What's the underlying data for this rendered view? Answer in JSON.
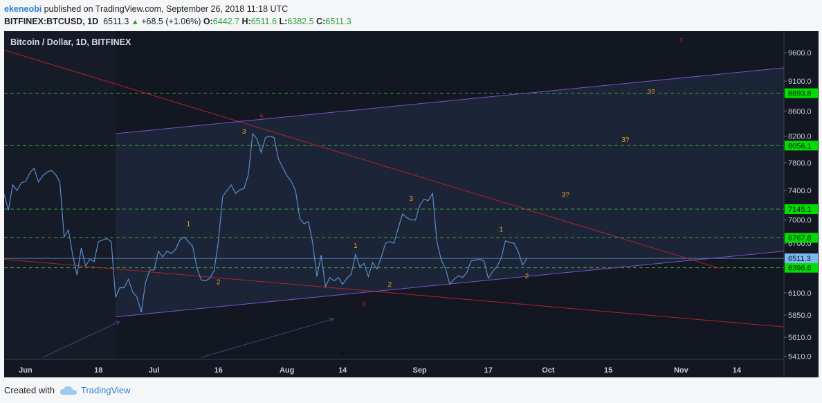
{
  "header": {
    "author": "ekeneobi",
    "published": "published on TradingView.com, September 26, 2018 11:18 UTC",
    "symbol": "BITFINEX:BTCUSD, 1D",
    "last": "6511.3",
    "arrow": "▲",
    "change": "+68.5 (+1.06%)",
    "o_label": "O:",
    "o_value": "6442.7",
    "h_label": "H:",
    "h_value": "6511.6",
    "l_label": "L:",
    "l_value": "6382.5",
    "c_label": "C:",
    "c_value": "6511.3"
  },
  "footer": {
    "created_with": "Created with",
    "brand": "TradingView"
  },
  "colors": {
    "background": "#131722",
    "line": "#5b8ec9",
    "channel": "#7b52c9",
    "trendline": "#b0232a",
    "level_line": "#3ca33c",
    "label": "#f0a020",
    "level_badge": "#00e000",
    "price_badge": "#7fb8f0"
  },
  "chart_data": {
    "type": "line",
    "title": "Bitcoin / Dollar, 1D, BITFINEX",
    "y_scale": "log",
    "ylim": [
      5380,
      10000
    ],
    "xlim": [
      "2018-05-27",
      "2018-11-25"
    ],
    "x_tick_labels": [
      {
        "date": "2018-06-01",
        "label": "Jun"
      },
      {
        "date": "2018-06-18",
        "label": "18"
      },
      {
        "date": "2018-07-01",
        "label": "Jul"
      },
      {
        "date": "2018-07-16",
        "label": "16"
      },
      {
        "date": "2018-08-01",
        "label": "Aug"
      },
      {
        "date": "2018-08-14",
        "label": "14"
      },
      {
        "date": "2018-09-01",
        "label": "Sep"
      },
      {
        "date": "2018-09-17",
        "label": "17"
      },
      {
        "date": "2018-10-01",
        "label": "Oct"
      },
      {
        "date": "2018-10-15",
        "label": "15"
      },
      {
        "date": "2018-11-01",
        "label": "Nov"
      },
      {
        "date": "2018-11-14",
        "label": "14"
      }
    ],
    "y_tick_labels": [
      "9600.0",
      "9100.0",
      "8600.0",
      "8200.0",
      "7800.0",
      "7400.0",
      "7000.0",
      "6700.0",
      "6100.0",
      "5850.0",
      "5610.0",
      "5410.0"
    ],
    "series": [
      {
        "x": [
          "2018-05-27",
          "2018-05-28",
          "2018-05-29",
          "2018-05-30",
          "2018-05-31",
          "2018-06-01",
          "2018-06-02",
          "2018-06-03",
          "2018-06-04",
          "2018-06-05",
          "2018-06-06",
          "2018-06-07",
          "2018-06-08",
          "2018-06-09",
          "2018-06-10",
          "2018-06-11",
          "2018-06-12",
          "2018-06-13",
          "2018-06-14",
          "2018-06-15",
          "2018-06-16",
          "2018-06-17",
          "2018-06-18",
          "2018-06-19",
          "2018-06-20",
          "2018-06-21",
          "2018-06-22",
          "2018-06-23",
          "2018-06-24",
          "2018-06-25",
          "2018-06-26",
          "2018-06-27",
          "2018-06-28",
          "2018-06-29",
          "2018-06-30",
          "2018-07-01",
          "2018-07-02",
          "2018-07-03",
          "2018-07-04",
          "2018-07-05",
          "2018-07-06",
          "2018-07-07",
          "2018-07-08",
          "2018-07-09",
          "2018-07-10",
          "2018-07-11",
          "2018-07-12",
          "2018-07-13",
          "2018-07-14",
          "2018-07-15",
          "2018-07-16",
          "2018-07-17",
          "2018-07-18",
          "2018-07-19",
          "2018-07-20",
          "2018-07-21",
          "2018-07-22",
          "2018-07-23",
          "2018-07-24",
          "2018-07-25",
          "2018-07-26",
          "2018-07-27",
          "2018-07-28",
          "2018-07-29",
          "2018-07-30",
          "2018-07-31",
          "2018-08-01",
          "2018-08-02",
          "2018-08-03",
          "2018-08-04",
          "2018-08-05",
          "2018-08-06",
          "2018-08-07",
          "2018-08-08",
          "2018-08-09",
          "2018-08-10",
          "2018-08-11",
          "2018-08-12",
          "2018-08-13",
          "2018-08-14",
          "2018-08-15",
          "2018-08-16",
          "2018-08-17",
          "2018-08-18",
          "2018-08-19",
          "2018-08-20",
          "2018-08-21",
          "2018-08-22",
          "2018-08-23",
          "2018-08-24",
          "2018-08-25",
          "2018-08-26",
          "2018-08-27",
          "2018-08-28",
          "2018-08-29",
          "2018-08-30",
          "2018-08-31",
          "2018-09-01",
          "2018-09-02",
          "2018-09-03",
          "2018-09-04",
          "2018-09-05",
          "2018-09-06",
          "2018-09-07",
          "2018-09-08",
          "2018-09-09",
          "2018-09-10",
          "2018-09-11",
          "2018-09-12",
          "2018-09-13",
          "2018-09-14",
          "2018-09-15",
          "2018-09-16",
          "2018-09-17",
          "2018-09-18",
          "2018-09-19",
          "2018-09-20",
          "2018-09-21",
          "2018-09-22",
          "2018-09-23",
          "2018-09-24",
          "2018-09-25",
          "2018-09-26"
        ],
        "values": [
          7350,
          7130,
          7480,
          7400,
          7510,
          7530,
          7650,
          7720,
          7520,
          7610,
          7660,
          7690,
          7630,
          7520,
          6780,
          6870,
          6550,
          6310,
          6640,
          6420,
          6500,
          6470,
          6720,
          6740,
          6760,
          6720,
          6050,
          6160,
          6160,
          6260,
          6110,
          6050,
          5880,
          6220,
          6370,
          6370,
          6600,
          6530,
          6600,
          6570,
          6620,
          6740,
          6780,
          6720,
          6660,
          6390,
          6250,
          6240,
          6270,
          6360,
          6720,
          7320,
          7400,
          7480,
          7360,
          7410,
          7430,
          7630,
          8240,
          8160,
          7950,
          8180,
          8200,
          8180,
          7860,
          7730,
          7610,
          7530,
          7400,
          7020,
          6950,
          6980,
          6710,
          6290,
          6550,
          6170,
          6280,
          6240,
          6280,
          6200,
          6270,
          6320,
          6560,
          6410,
          6450,
          6290,
          6460,
          6380,
          6520,
          6700,
          6720,
          6700,
          6900,
          7080,
          7030,
          7000,
          7000,
          7200,
          7280,
          7260,
          7360,
          6720,
          6490,
          6390,
          6200,
          6260,
          6300,
          6280,
          6340,
          6480,
          6490,
          6500,
          6480,
          6270,
          6350,
          6410,
          6510,
          6730,
          6710,
          6700,
          6590,
          6430,
          6511
        ]
      }
    ],
    "levels": [
      8893.8,
      8056.1,
      7145.1,
      6767.8,
      6396.6
    ],
    "last_price": 6511.3,
    "level_badges": [
      "8893.8",
      "8056.1",
      "7145.1",
      "6767.8",
      "6396.6"
    ],
    "price_badge": "6511.3",
    "annotations": [
      {
        "text": "c",
        "x": "2018-11-01",
        "y": 9800
      },
      {
        "text": "a",
        "x": "2018-07-26",
        "y": 8500
      },
      {
        "text": "b",
        "x": "2018-08-19",
        "y": 5950
      },
      {
        "text": "1",
        "x": "2018-08-14",
        "y": 5430
      },
      {
        "text": "3",
        "x": "2018-07-22",
        "y": 8240
      },
      {
        "text": "3?",
        "x": "2018-10-25",
        "y": 8880
      },
      {
        "text": "3?",
        "x": "2018-10-19",
        "y": 8110
      },
      {
        "text": "3?",
        "x": "2018-10-05",
        "y": 7310
      },
      {
        "text": "3",
        "x": "2018-08-30",
        "y": 7260
      },
      {
        "text": "1",
        "x": "2018-07-09",
        "y": 6920
      },
      {
        "text": "1",
        "x": "2018-08-17",
        "y": 6640
      },
      {
        "text": "1",
        "x": "2018-09-20",
        "y": 6850
      },
      {
        "text": "2",
        "x": "2018-07-16",
        "y": 6200
      },
      {
        "text": "2",
        "x": "2018-08-25",
        "y": 6170
      },
      {
        "text": "2",
        "x": "2018-09-26",
        "y": 6270
      }
    ]
  }
}
